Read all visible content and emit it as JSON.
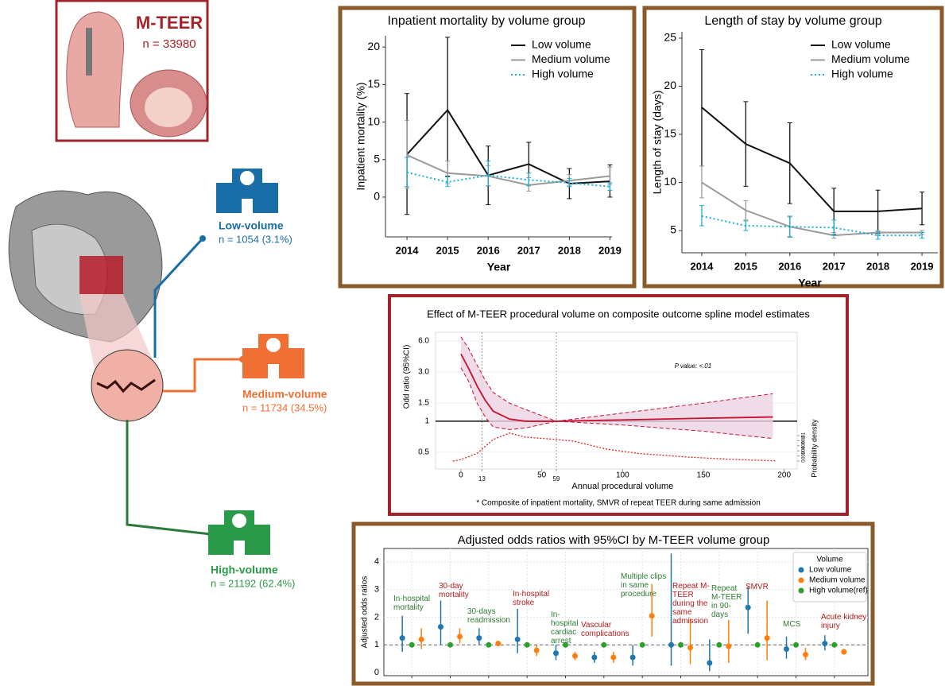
{
  "header": {
    "title": "M-TEER",
    "n": "n = 33980"
  },
  "groups": [
    {
      "name": "Low-volume",
      "n": "n = 1054 (3.1%)",
      "color": "#1a6ea8"
    },
    {
      "name": "Medium-volume",
      "n": "n = 11734 (34.5%)",
      "color": "#f07033"
    },
    {
      "name": "High-volume",
      "n": "n = 21192 (62.4%)",
      "color": "#2a9a48"
    }
  ],
  "chart_data": [
    {
      "type": "line",
      "title": "Inpatient mortality by volume group",
      "xlabel": "Year",
      "ylabel": "Inpatient mortality (%)",
      "x": [
        2014,
        2015,
        2016,
        2017,
        2018,
        2019
      ],
      "xlim": [
        2013.47,
        2019.05
      ],
      "xticks": [
        2014,
        2015,
        2016,
        2017,
        2018,
        2019
      ],
      "ylim": [
        -5.3,
        21.5
      ],
      "yticks": [
        0,
        5,
        10,
        15,
        20
      ],
      "legend": "upper right",
      "series": [
        {
          "name": "Low volume",
          "color": "#111111",
          "dash": "solid",
          "values": [
            5.7,
            11.6,
            2.9,
            4.4,
            1.8,
            2.1
          ],
          "lower": [
            -2.3,
            2.8,
            -1.0,
            1.6,
            -0.2,
            0.0
          ],
          "upper": [
            13.8,
            21.3,
            6.8,
            7.3,
            3.8,
            4.3
          ]
        },
        {
          "name": "Medium volume",
          "color": "#9a9a9a",
          "dash": "solid",
          "values": [
            5.6,
            3.2,
            2.8,
            1.6,
            2.2,
            2.8
          ],
          "lower": [
            1.2,
            1.8,
            1.5,
            0.8,
            1.5,
            1.7
          ],
          "upper": [
            10.2,
            4.8,
            4.2,
            2.6,
            3.0,
            4.0
          ]
        },
        {
          "name": "High volume",
          "color": "#1ab0d8",
          "dash": "dotted",
          "values": [
            3.3,
            2.0,
            2.9,
            2.3,
            1.9,
            1.4
          ],
          "lower": [
            1.4,
            1.4,
            1.5,
            1.5,
            1.4,
            0.9
          ],
          "upper": [
            5.3,
            2.7,
            4.8,
            3.2,
            2.5,
            1.9
          ]
        }
      ]
    },
    {
      "type": "line",
      "title": "Length of stay by volume group",
      "xlabel": "Year",
      "ylabel": "Length of stay (days)",
      "x": [
        2014,
        2015,
        2016,
        2017,
        2018,
        2019
      ],
      "xlim": [
        2013.55,
        2019.36
      ],
      "xticks": [
        2014,
        2015,
        2016,
        2017,
        2018,
        2019
      ],
      "ylim": [
        2.69,
        25.66
      ],
      "yticks": [
        5,
        10,
        15,
        20,
        25
      ],
      "legend": "upper right",
      "series": [
        {
          "name": "Low volume",
          "color": "#111111",
          "dash": "solid",
          "values": [
            17.8,
            14.0,
            12.0,
            7.0,
            7.0,
            7.3
          ],
          "lower": [
            11.7,
            9.6,
            7.8,
            4.6,
            4.7,
            5.6
          ],
          "upper": [
            23.8,
            18.4,
            16.2,
            9.4,
            9.2,
            9.0
          ]
        },
        {
          "name": "Medium volume",
          "color": "#9a9a9a",
          "dash": "solid",
          "values": [
            10.0,
            7.1,
            5.4,
            4.5,
            4.8,
            4.8
          ],
          "lower": [
            8.4,
            6.1,
            4.4,
            4.2,
            4.5,
            4.6
          ],
          "upper": [
            11.7,
            8.1,
            6.4,
            4.8,
            5.0,
            5.0
          ]
        },
        {
          "name": "High volume",
          "color": "#1ab0d8",
          "dash": "dotted",
          "values": [
            6.5,
            5.5,
            5.4,
            5.3,
            4.5,
            4.5
          ],
          "lower": [
            5.5,
            5.0,
            4.3,
            4.5,
            4.1,
            4.2
          ],
          "upper": [
            7.6,
            6.0,
            6.5,
            6.1,
            4.9,
            4.8
          ]
        }
      ]
    },
    {
      "type": "spline",
      "title": "Effect of M-TEER procedural volume on composite outcome spline model estimates",
      "xlabel": "Annual procedural volume",
      "ylabel": "Odd ratio (95%CI)",
      "y2label": "Probability density",
      "annotation": "P value: <.01",
      "footnote": "* Composite of inpatient mortality, SMVR of repeat TEER during same admission",
      "log_y": true,
      "color": "#c8102e",
      "band_color": "#ecd3e3",
      "density_color": "#d9261c",
      "x": [
        0,
        5,
        10,
        15,
        20,
        30,
        40,
        59,
        100,
        150,
        193
      ],
      "values": [
        4.5,
        3.2,
        2.2,
        1.6,
        1.25,
        1.05,
        1.0,
        1.0,
        1.03,
        1.07,
        1.1
      ],
      "lower": [
        3.3,
        2.4,
        1.5,
        1.1,
        0.88,
        0.83,
        0.86,
        1.0,
        0.92,
        0.8,
        0.68
      ],
      "upper": [
        6.6,
        5.0,
        3.5,
        2.5,
        1.9,
        1.5,
        1.3,
        1.0,
        1.2,
        1.5,
        1.85
      ],
      "xlim": [
        -15.7,
        208
      ],
      "xticks": [
        0,
        13,
        50,
        59,
        100,
        150,
        200
      ],
      "vlines": [
        13,
        59
      ],
      "hline": 1,
      "ylim": [
        0.344,
        7.3
      ],
      "yticks": [
        0.5,
        1,
        1.5,
        {
          "value": 3,
          "label": "3.0"
        },
        {
          "value": 6,
          "label": "6.0"
        }
      ],
      "density_x": [
        -5,
        0,
        10,
        20,
        30,
        40,
        59,
        70,
        90,
        110,
        140,
        170,
        195
      ],
      "density_values": [
        0,
        0.0006,
        0.003,
        0.0085,
        0.011,
        0.0094,
        0.0085,
        0.0078,
        0.0047,
        0.003,
        0.0016,
        0.0006,
        0.0001
      ],
      "y2lim": [
        -0.0031,
        0.0506
      ],
      "y2ticks": [
        0,
        {
          "value": 0.002,
          "label": ".002"
        },
        {
          "value": 0.004,
          "label": ".004"
        },
        {
          "value": 0.006,
          "label": ".006"
        },
        {
          "value": 0.008,
          "label": ".008"
        },
        {
          "value": 0.01,
          "label": ".01"
        }
      ]
    },
    {
      "type": "forest",
      "title": "Adjusted odds ratios with 95%CI by M-TEER volume group",
      "ylabel": "Adjusted odds ratios",
      "legend_title": "Volume",
      "legend": "upper right",
      "grid": true,
      "hline": 1,
      "categories": [
        "In-hospital mortality",
        "30-day mortality",
        "30-days readmission",
        "In-hospital stroke",
        "In-hospital cardiac arrest",
        "Vascular complications",
        "Multiple clips in same procedure",
        "Repeat M-TEER during the same admission",
        "Repeat M-TEER in 90-days",
        "SMVR",
        "MCS",
        "Acute kidney injury"
      ],
      "category_colors": [
        "#2e7d32",
        "#b71c1c",
        "#2e7d32",
        "#b71c1c",
        "#2e7d32",
        "#b71c1c",
        "#2e7d32",
        "#b71c1c",
        "#2e7d32",
        "#b71c1c",
        "#2e7d32",
        "#b71c1c"
      ],
      "ylim": [
        -0.11,
        4.48
      ],
      "yticks": [
        0,
        1,
        2,
        3,
        4
      ],
      "series": [
        {
          "name": "Low volume",
          "color": "#1f77b4",
          "values": [
            1.25,
            1.65,
            1.25,
            1.2,
            0.7,
            0.55,
            0.55,
            1.0,
            0.35,
            2.35,
            0.85,
            1.05
          ],
          "lower": [
            0.75,
            1.0,
            1.0,
            0.7,
            0.45,
            0.35,
            0.25,
            0.25,
            0.05,
            1.4,
            0.5,
            0.8
          ],
          "upper": [
            2.05,
            2.6,
            1.6,
            2.3,
            1.0,
            0.75,
            1.0,
            4.3,
            1.2,
            3.1,
            1.3,
            1.35
          ]
        },
        {
          "name": "Medium volume",
          "color": "#ff7f0e",
          "values": [
            1.2,
            1.3,
            1.05,
            0.8,
            0.6,
            0.55,
            2.05,
            0.9,
            0.95,
            1.25,
            0.65,
            0.75
          ],
          "lower": [
            0.85,
            1.05,
            0.95,
            0.6,
            0.45,
            0.35,
            1.3,
            0.3,
            0.35,
            0.45,
            0.45,
            0.65
          ],
          "upper": [
            1.6,
            1.6,
            1.15,
            1.0,
            0.75,
            0.75,
            3.2,
            1.95,
            1.9,
            2.6,
            0.9,
            0.85
          ]
        },
        {
          "name": "High volume(ref)",
          "color": "#2ca02c",
          "values": [
            1,
            1,
            1,
            1,
            1,
            1,
            1,
            1,
            1,
            1,
            1,
            1
          ]
        }
      ]
    }
  ]
}
